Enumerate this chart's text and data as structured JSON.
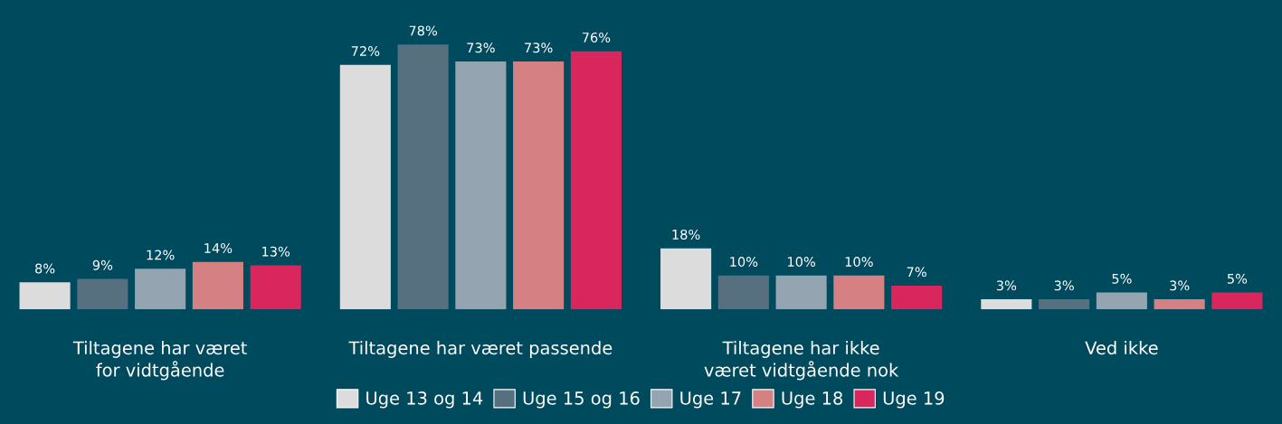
{
  "chart_data": {
    "type": "bar",
    "categories": [
      "Tiltagene har været\nfor vidtgående",
      "Tiltagene har været passende",
      "Tiltagene har ikke\nværet vidtgående nok",
      "Ved ikke"
    ],
    "series": [
      {
        "name": "Uge 13 og 14",
        "color": "#dcdcdc",
        "values": [
          8,
          72,
          18,
          3
        ],
        "value_labels": [
          "8%",
          "72%",
          "18%",
          "3%"
        ]
      },
      {
        "name": "Uge 15 og 16",
        "color": "#56707f",
        "values": [
          9,
          78,
          10,
          3
        ],
        "value_labels": [
          "9%",
          "78%",
          "10%",
          "3%"
        ]
      },
      {
        "name": "Uge 17",
        "color": "#94a4b0",
        "values": [
          12,
          73,
          10,
          5
        ],
        "value_labels": [
          "12%",
          "73%",
          "10%",
          "5%"
        ]
      },
      {
        "name": "Uge 18",
        "color": "#d58083",
        "values": [
          14,
          73,
          10,
          3
        ],
        "value_labels": [
          "14%",
          "73%",
          "10%",
          "3%"
        ]
      },
      {
        "name": "Uge 19",
        "color": "#d9265c",
        "values": [
          13,
          76,
          7,
          5
        ],
        "value_labels": [
          "13%",
          "76%",
          "7%",
          "5%"
        ]
      }
    ],
    "legend": "bottom",
    "grid": false
  }
}
